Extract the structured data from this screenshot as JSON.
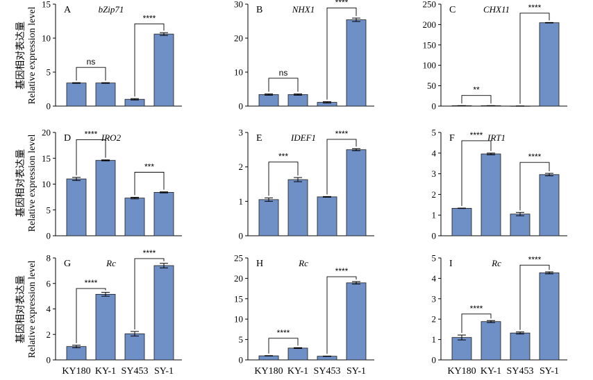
{
  "figure": {
    "ylabel_cn": "基因相对表达量",
    "ylabel_en": "Relative expression level",
    "categories": [
      "KY180",
      "KY-1",
      "SY453",
      "SY-1"
    ],
    "bar_color": "#6f8fc7",
    "bar_edge": "#1a1a1a"
  },
  "chart_data": [
    {
      "type": "bar",
      "panel": "A",
      "title": "bZip71",
      "categories": [
        "KY180",
        "KY-1",
        "SY453",
        "SY-1"
      ],
      "values": [
        3.4,
        3.4,
        1.0,
        10.6
      ],
      "errors": [
        0.05,
        0.05,
        0.1,
        0.2
      ],
      "ylim": [
        0,
        15
      ],
      "yticks": [
        0,
        5,
        10,
        15
      ],
      "comparisons": [
        {
          "pair": [
            0,
            1
          ],
          "label": "ns",
          "height": 5.7
        },
        {
          "pair": [
            2,
            3
          ],
          "label": "****",
          "height": 12.1
        }
      ]
    },
    {
      "type": "bar",
      "panel": "B",
      "title": "NHX1",
      "categories": [
        "KY180",
        "KY-1",
        "SY453",
        "SY-1"
      ],
      "values": [
        3.4,
        3.4,
        1.1,
        25.4
      ],
      "errors": [
        0.2,
        0.2,
        0.2,
        0.5
      ],
      "ylim": [
        0,
        30
      ],
      "yticks": [
        0,
        10,
        20,
        30
      ],
      "comparisons": [
        {
          "pair": [
            0,
            1
          ],
          "label": "ns",
          "height": 8.2
        },
        {
          "pair": [
            2,
            3
          ],
          "label": "****",
          "height": 28.9
        }
      ]
    },
    {
      "type": "bar",
      "panel": "C",
      "title": "CHX11",
      "categories": [
        "KY180",
        "KY-1",
        "SY453",
        "SY-1"
      ],
      "values": [
        1.0,
        1.0,
        0.3,
        204.5
      ],
      "errors": [
        0.2,
        0.2,
        0.1,
        0.6
      ],
      "ylim": [
        0,
        250
      ],
      "yticks": [
        0,
        50,
        100,
        150,
        200,
        250
      ],
      "comparisons": [
        {
          "pair": [
            0,
            1
          ],
          "label": "**",
          "height": 26
        },
        {
          "pair": [
            2,
            3
          ],
          "label": "****",
          "height": 228
        }
      ]
    },
    {
      "type": "bar",
      "panel": "D",
      "title": "IRO2",
      "categories": [
        "KY180",
        "KY-1",
        "SY453",
        "SY-1"
      ],
      "values": [
        11.0,
        14.6,
        7.3,
        8.4
      ],
      "errors": [
        0.3,
        0.1,
        0.15,
        0.1
      ],
      "ylim": [
        0,
        20
      ],
      "yticks": [
        0,
        5,
        10,
        15,
        20
      ],
      "comparisons": [
        {
          "pair": [
            0,
            1
          ],
          "label": "****",
          "height": 18.6
        },
        {
          "pair": [
            2,
            3
          ],
          "label": "***",
          "height": 12.3
        }
      ]
    },
    {
      "type": "bar",
      "panel": "E",
      "title": "IDEF1",
      "categories": [
        "KY180",
        "KY-1",
        "SY453",
        "SY-1"
      ],
      "values": [
        1.05,
        1.63,
        1.13,
        2.5
      ],
      "errors": [
        0.05,
        0.06,
        0.01,
        0.03
      ],
      "ylim": [
        0,
        3
      ],
      "yticks": [
        0,
        1,
        2,
        3
      ],
      "comparisons": [
        {
          "pair": [
            0,
            1
          ],
          "label": "***",
          "height": 2.14
        },
        {
          "pair": [
            2,
            3
          ],
          "label": "****",
          "height": 2.8
        }
      ]
    },
    {
      "type": "bar",
      "panel": "F",
      "title": "IRT1",
      "categories": [
        "KY180",
        "KY-1",
        "SY453",
        "SY-1"
      ],
      "values": [
        1.33,
        3.96,
        1.05,
        2.96
      ],
      "errors": [
        0.01,
        0.04,
        0.08,
        0.06
      ],
      "ylim": [
        0,
        5
      ],
      "yticks": [
        0,
        1,
        2,
        3,
        4,
        5
      ],
      "comparisons": [
        {
          "pair": [
            0,
            1
          ],
          "label": "****",
          "height": 4.6
        },
        {
          "pair": [
            2,
            3
          ],
          "label": "****",
          "height": 3.55
        }
      ]
    },
    {
      "type": "bar",
      "panel": "G",
      "title": "Rc",
      "categories": [
        "KY180",
        "KY-1",
        "SY453",
        "SY-1"
      ],
      "values": [
        1.05,
        5.15,
        2.05,
        7.4
      ],
      "errors": [
        0.1,
        0.15,
        0.18,
        0.18
      ],
      "ylim": [
        0,
        8
      ],
      "yticks": [
        0,
        2,
        4,
        6,
        8
      ],
      "comparisons": [
        {
          "pair": [
            0,
            1
          ],
          "label": "****",
          "height": 5.6
        },
        {
          "pair": [
            2,
            3
          ],
          "label": "****",
          "height": 7.95
        }
      ]
    },
    {
      "type": "bar",
      "panel": "H",
      "title": "Rc",
      "categories": [
        "KY180",
        "KY-1",
        "SY453",
        "SY-1"
      ],
      "values": [
        1.0,
        2.9,
        0.9,
        18.9
      ],
      "errors": [
        0.05,
        0.1,
        0.05,
        0.3
      ],
      "ylim": [
        0,
        25
      ],
      "yticks": [
        0,
        5,
        10,
        15,
        20,
        25
      ],
      "comparisons": [
        {
          "pair": [
            0,
            1
          ],
          "label": "****",
          "height": 5.3
        },
        {
          "pair": [
            2,
            3
          ],
          "label": "****",
          "height": 20.4
        }
      ]
    },
    {
      "type": "bar",
      "panel": "I",
      "title": "Rc",
      "categories": [
        "KY180",
        "KY-1",
        "SY453",
        "SY-1"
      ],
      "values": [
        1.1,
        1.88,
        1.32,
        4.27
      ],
      "errors": [
        0.12,
        0.05,
        0.05,
        0.05
      ],
      "ylim": [
        0,
        5
      ],
      "yticks": [
        0,
        1,
        2,
        3,
        4,
        5
      ],
      "comparisons": [
        {
          "pair": [
            0,
            1
          ],
          "label": "****",
          "height": 2.25
        },
        {
          "pair": [
            2,
            3
          ],
          "label": "****",
          "height": 4.65
        }
      ]
    }
  ]
}
